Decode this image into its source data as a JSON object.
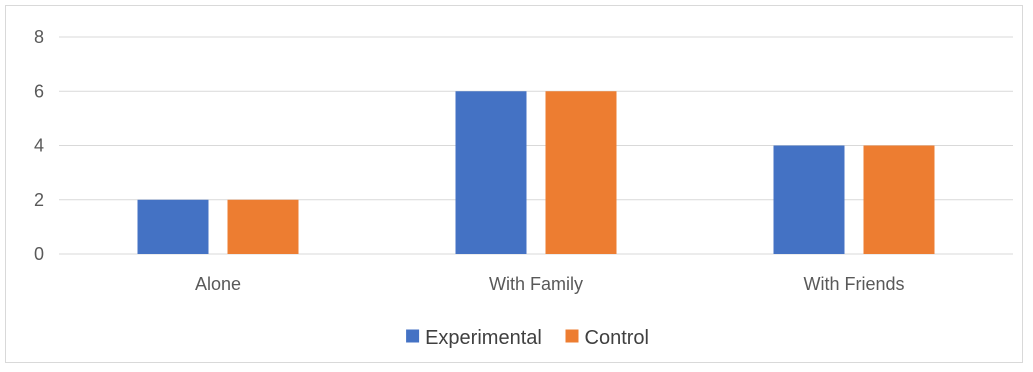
{
  "chart_data": {
    "type": "bar",
    "categories": [
      "Alone",
      "With Family",
      "With Friends"
    ],
    "series": [
      {
        "name": "Experimental",
        "values": [
          2,
          6,
          4
        ],
        "color": "#4472c4"
      },
      {
        "name": "Control",
        "values": [
          2,
          6,
          4
        ],
        "color": "#ed7d31"
      }
    ],
    "ylim": [
      0,
      8
    ],
    "yticks": [
      "0",
      "2",
      "4",
      "6",
      "8"
    ],
    "grid": true,
    "legend_position": "bottom"
  }
}
